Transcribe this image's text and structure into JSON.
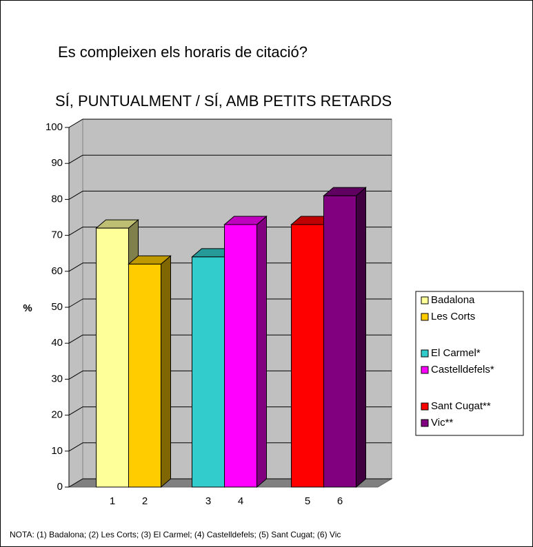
{
  "chart_data": {
    "type": "bar3d",
    "title": "Es compleixen els horaris de citació?",
    "subtitle": "SÍ, PUNTUALMENT / SÍ, AMB PETITS RETARDS",
    "y_label": "%",
    "note": "NOTA: (1) Badalona; (2) Les Corts; (3) El Carmel; (4) Castelldefels; (5) Sant Cugat; (6) Vic",
    "categories": [
      "1",
      "2",
      "3",
      "4",
      "5",
      "6"
    ],
    "series": [
      {
        "name": "Badalona",
        "color": "#ffff99",
        "values": [
          72,
          null,
          null,
          null,
          null,
          null
        ]
      },
      {
        "name": "Les Corts",
        "color": "#ffcc00",
        "values": [
          null,
          62,
          null,
          null,
          null,
          null
        ]
      },
      {
        "name": "El Carmel*",
        "color": "#33cccc",
        "values": [
          null,
          null,
          64,
          null,
          null,
          null
        ]
      },
      {
        "name": "Castelldefels*",
        "color": "#ff00ff",
        "values": [
          null,
          null,
          null,
          73,
          null,
          null
        ]
      },
      {
        "name": "Sant Cugat**",
        "color": "#ff0000",
        "values": [
          null,
          null,
          null,
          null,
          73,
          null
        ]
      },
      {
        "name": "Vic**",
        "color": "#800080",
        "values": [
          null,
          null,
          null,
          null,
          null,
          81
        ]
      }
    ],
    "ylim": [
      0,
      100
    ],
    "yticks": [
      0,
      10,
      20,
      30,
      40,
      50,
      60,
      70,
      80,
      90,
      100
    ],
    "grid": true
  }
}
